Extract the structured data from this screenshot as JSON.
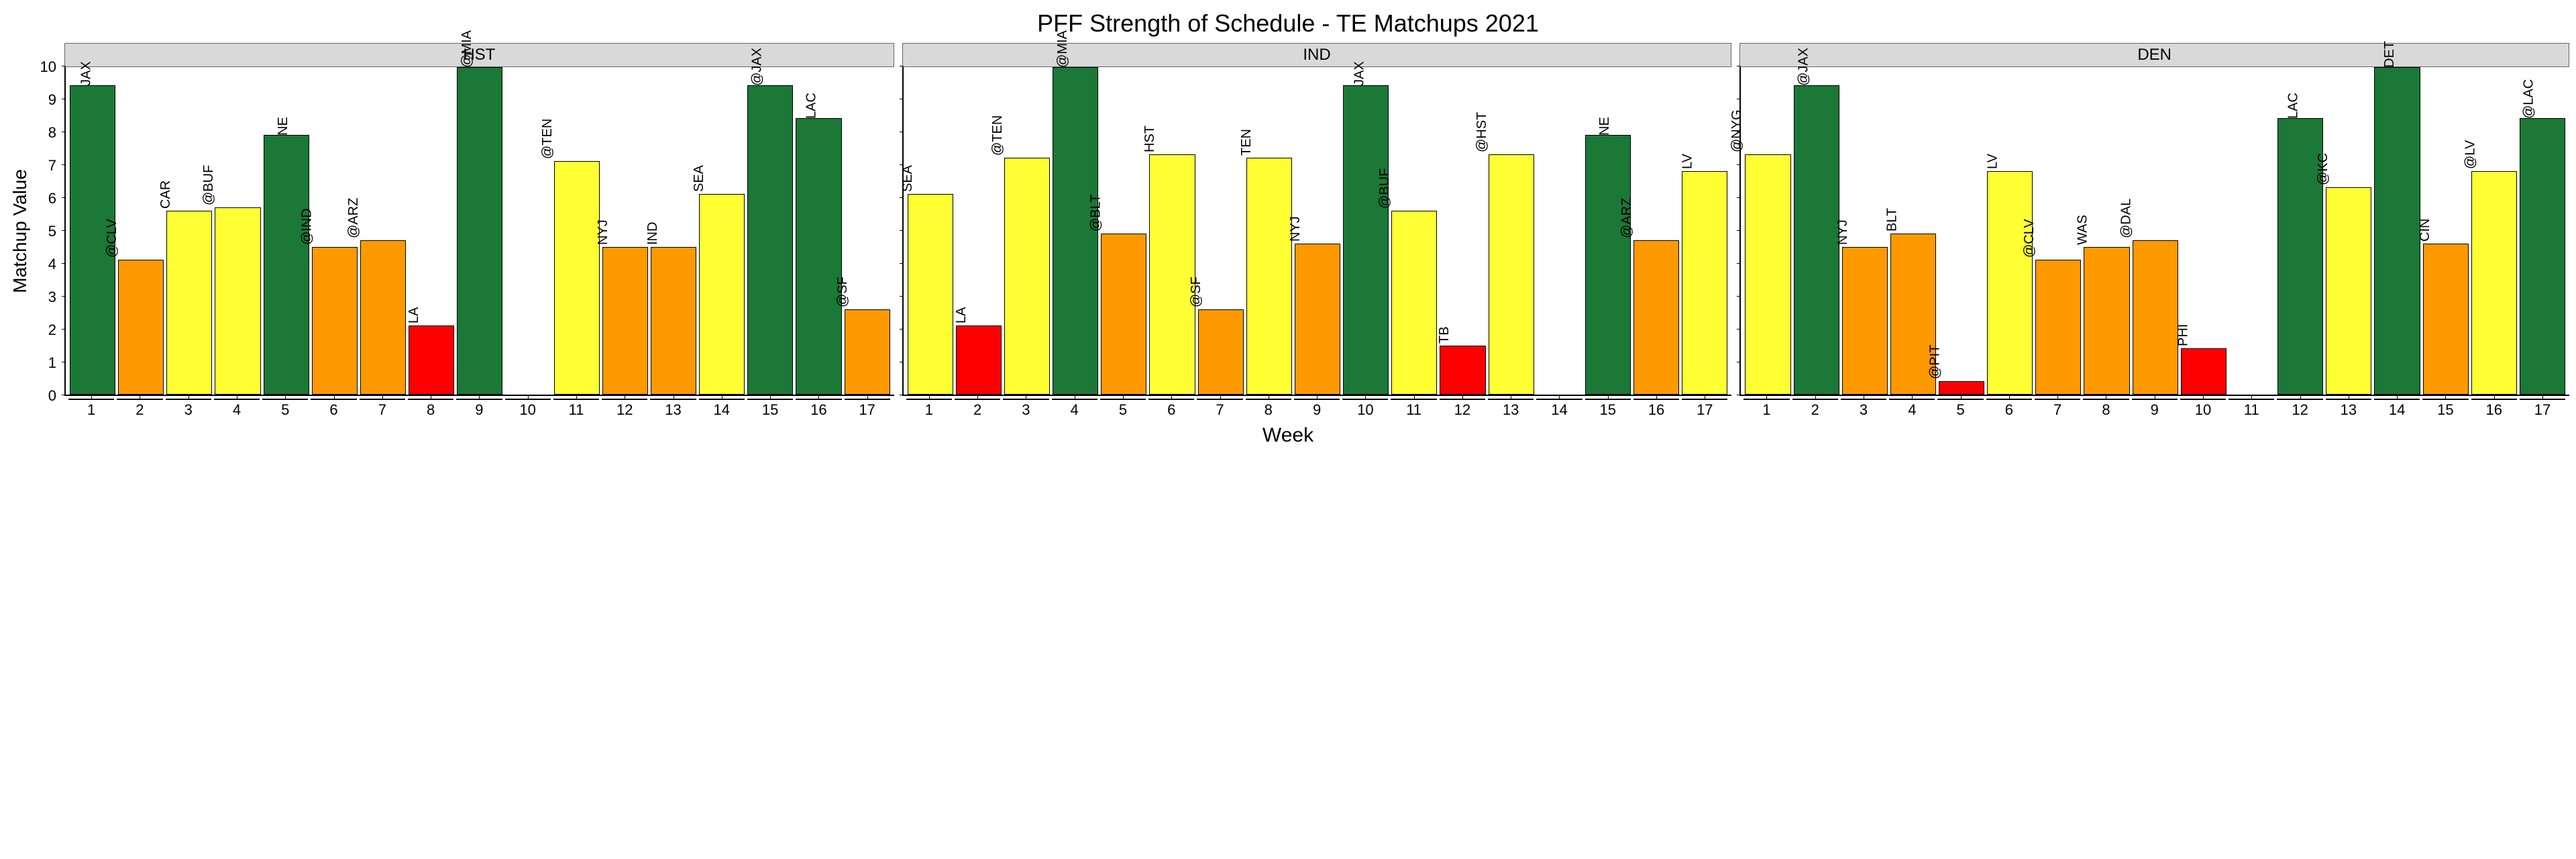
{
  "chart": {
    "title": "PFF Strength of Schedule - TE Matchups 2021",
    "x_axis_title": "Week",
    "y_axis_title": "Matchup Value",
    "title_fontsize": 36,
    "axis_title_fontsize": 28,
    "tick_fontsize": 22,
    "bar_label_fontsize": 20,
    "strip_fontsize": 24,
    "background_color": "#ffffff",
    "strip_background": "#d9d9d9",
    "strip_border": "#666666",
    "axis_color": "#000000",
    "ylim": [
      0,
      10
    ],
    "ytick_step": 1,
    "yticks": [
      10,
      9,
      8,
      7,
      6,
      5,
      4,
      3,
      2,
      1,
      0
    ],
    "weeks": [
      1,
      2,
      3,
      4,
      5,
      6,
      7,
      8,
      9,
      10,
      11,
      12,
      13,
      14,
      15,
      16,
      17
    ],
    "colors": {
      "dark_green": "#1b7837",
      "yellow": "#ffff33",
      "orange": "#ff9900",
      "red": "#ff0000"
    },
    "facets": [
      {
        "name": "HST",
        "bars": [
          {
            "week": 1,
            "label": "JAX",
            "value": 9.4,
            "color": "#1b7837",
            "label_inside": true
          },
          {
            "week": 2,
            "label": "@CLV",
            "value": 4.1,
            "color": "#ff9900"
          },
          {
            "week": 3,
            "label": "CAR",
            "value": 5.6,
            "color": "#ffff33"
          },
          {
            "week": 4,
            "label": "@BUF",
            "value": 5.7,
            "color": "#ffff33"
          },
          {
            "week": 5,
            "label": "NE",
            "value": 7.9,
            "color": "#1b7837",
            "label_inside": true
          },
          {
            "week": 6,
            "label": "@IND",
            "value": 4.5,
            "color": "#ff9900"
          },
          {
            "week": 7,
            "label": "@ARZ",
            "value": 4.7,
            "color": "#ff9900"
          },
          {
            "week": 8,
            "label": "LA",
            "value": 2.1,
            "color": "#ff0000"
          },
          {
            "week": 9,
            "label": "@MIA",
            "value": 10.0,
            "color": "#1b7837",
            "label_inside": true
          },
          {
            "week": 10,
            "label": "",
            "value": null,
            "color": null
          },
          {
            "week": 11,
            "label": "@TEN",
            "value": 7.1,
            "color": "#ffff33"
          },
          {
            "week": 12,
            "label": "NYJ",
            "value": 4.5,
            "color": "#ff9900"
          },
          {
            "week": 13,
            "label": "IND",
            "value": 4.5,
            "color": "#ff9900"
          },
          {
            "week": 14,
            "label": "SEA",
            "value": 6.1,
            "color": "#ffff33"
          },
          {
            "week": 15,
            "label": "@JAX",
            "value": 9.4,
            "color": "#1b7837",
            "label_inside": true
          },
          {
            "week": 16,
            "label": "LAC",
            "value": 8.4,
            "color": "#1b7837",
            "label_inside": true
          },
          {
            "week": 17,
            "label": "@SF",
            "value": 2.6,
            "color": "#ff9900"
          }
        ]
      },
      {
        "name": "IND",
        "bars": [
          {
            "week": 1,
            "label": "SEA",
            "value": 6.1,
            "color": "#ffff33"
          },
          {
            "week": 2,
            "label": "LA",
            "value": 2.1,
            "color": "#ff0000"
          },
          {
            "week": 3,
            "label": "@TEN",
            "value": 7.2,
            "color": "#ffff33"
          },
          {
            "week": 4,
            "label": "@MIA",
            "value": 10.0,
            "color": "#1b7837",
            "label_inside": true
          },
          {
            "week": 5,
            "label": "@BLT",
            "value": 4.9,
            "color": "#ff9900"
          },
          {
            "week": 6,
            "label": "HST",
            "value": 7.3,
            "color": "#ffff33"
          },
          {
            "week": 7,
            "label": "@SF",
            "value": 2.6,
            "color": "#ff9900"
          },
          {
            "week": 8,
            "label": "TEN",
            "value": 7.2,
            "color": "#ffff33"
          },
          {
            "week": 9,
            "label": "NYJ",
            "value": 4.6,
            "color": "#ff9900"
          },
          {
            "week": 10,
            "label": "JAX",
            "value": 9.4,
            "color": "#1b7837",
            "label_inside": true
          },
          {
            "week": 11,
            "label": "@BUF",
            "value": 5.6,
            "color": "#ffff33"
          },
          {
            "week": 12,
            "label": "TB",
            "value": 1.5,
            "color": "#ff0000"
          },
          {
            "week": 13,
            "label": "@HST",
            "value": 7.3,
            "color": "#ffff33"
          },
          {
            "week": 14,
            "label": "",
            "value": null,
            "color": null
          },
          {
            "week": 15,
            "label": "NE",
            "value": 7.9,
            "color": "#1b7837",
            "label_inside": true
          },
          {
            "week": 16,
            "label": "@ARZ",
            "value": 4.7,
            "color": "#ff9900"
          },
          {
            "week": 17,
            "label": "LV",
            "value": 6.8,
            "color": "#ffff33"
          }
        ]
      },
      {
        "name": "DEN",
        "bars": [
          {
            "week": 1,
            "label": "@NYG",
            "value": 7.3,
            "color": "#ffff33"
          },
          {
            "week": 2,
            "label": "@JAX",
            "value": 9.4,
            "color": "#1b7837",
            "label_inside": true
          },
          {
            "week": 3,
            "label": "NYJ",
            "value": 4.5,
            "color": "#ff9900"
          },
          {
            "week": 4,
            "label": "BLT",
            "value": 4.9,
            "color": "#ff9900"
          },
          {
            "week": 5,
            "label": "@PIT",
            "value": 0.4,
            "color": "#ff0000"
          },
          {
            "week": 6,
            "label": "LV",
            "value": 6.8,
            "color": "#ffff33"
          },
          {
            "week": 7,
            "label": "@CLV",
            "value": 4.1,
            "color": "#ff9900"
          },
          {
            "week": 8,
            "label": "WAS",
            "value": 4.5,
            "color": "#ff9900"
          },
          {
            "week": 9,
            "label": "@DAL",
            "value": 4.7,
            "color": "#ff9900"
          },
          {
            "week": 10,
            "label": "PHI",
            "value": 1.4,
            "color": "#ff0000"
          },
          {
            "week": 11,
            "label": "",
            "value": null,
            "color": null
          },
          {
            "week": 12,
            "label": "LAC",
            "value": 8.4,
            "color": "#1b7837",
            "label_inside": true
          },
          {
            "week": 13,
            "label": "@KC",
            "value": 6.3,
            "color": "#ffff33"
          },
          {
            "week": 14,
            "label": "DET",
            "value": 10.0,
            "color": "#1b7837",
            "label_inside": true
          },
          {
            "week": 15,
            "label": "CIN",
            "value": 4.6,
            "color": "#ff9900"
          },
          {
            "week": 16,
            "label": "@LV",
            "value": 6.8,
            "color": "#ffff33"
          },
          {
            "week": 17,
            "label": "@LAC",
            "value": 8.4,
            "color": "#1b7837",
            "label_inside": true
          }
        ]
      }
    ]
  }
}
